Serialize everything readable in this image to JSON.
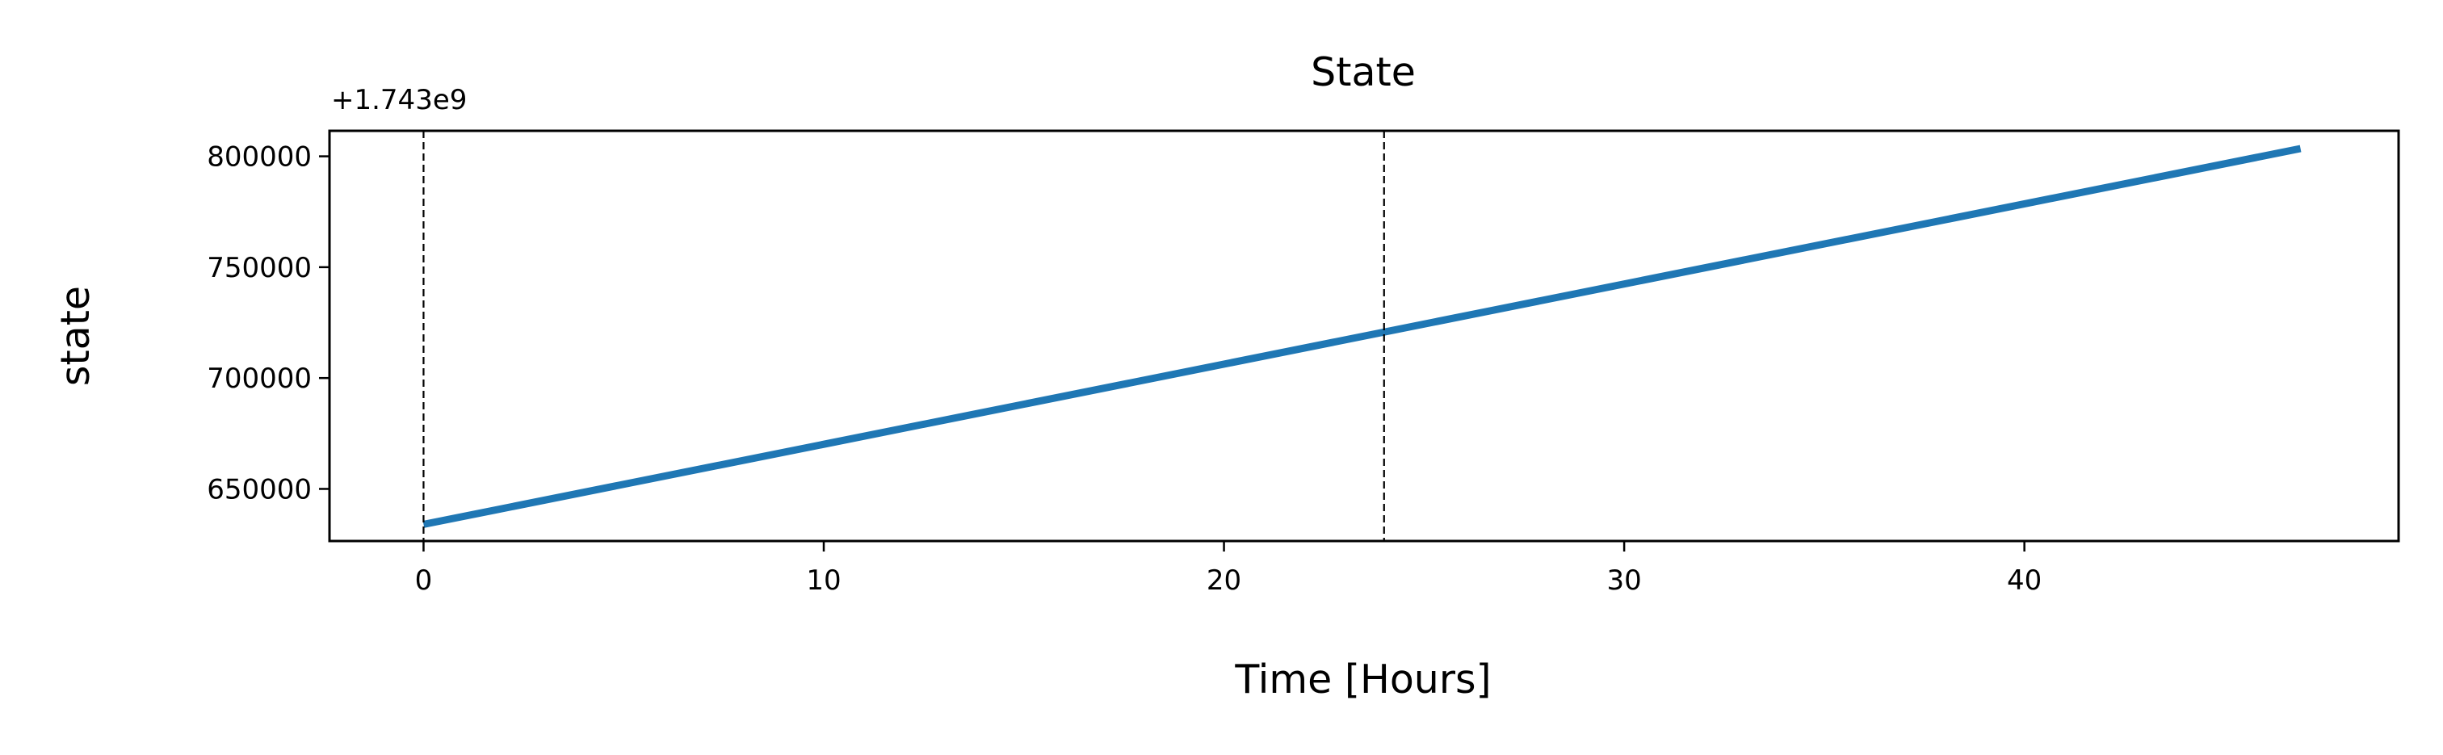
{
  "chart_data": {
    "type": "line",
    "title": "State",
    "xlabel": "Time [Hours]",
    "ylabel": "state",
    "y_offset_text": "+1.743e9",
    "xlim": [
      -2.35,
      49.35
    ],
    "ylim": [
      626500,
      811500
    ],
    "x_ticks": [
      0,
      10,
      20,
      30,
      40
    ],
    "x_tick_labels": [
      "0",
      "10",
      "20",
      "30",
      "40"
    ],
    "y_ticks": [
      650000,
      700000,
      750000,
      800000
    ],
    "y_tick_labels": [
      "650000",
      "700000",
      "750000",
      "800000"
    ],
    "vlines": [
      0,
      24
    ],
    "grid": false,
    "legend": false,
    "series": [
      {
        "color": "#1f77b4",
        "x": [
          0,
          46.9
        ],
        "y": [
          634000,
          803500
        ]
      }
    ]
  }
}
